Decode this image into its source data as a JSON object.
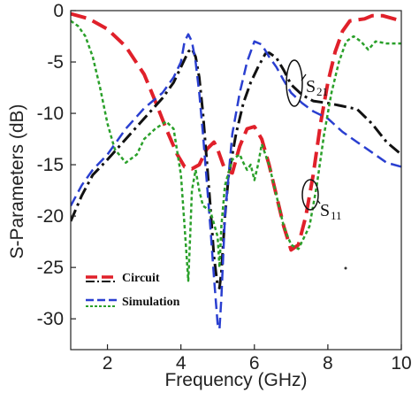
{
  "chart_data": {
    "type": "line",
    "title": "",
    "xlabel": "Frequency (GHz)",
    "ylabel": "S-Parameters (dB)",
    "xlim": [
      1,
      10
    ],
    "ylim": [
      -33,
      0
    ],
    "xticks": [
      2,
      4,
      6,
      8,
      10
    ],
    "yticks": [
      0,
      -5,
      -10,
      -15,
      -20,
      -25,
      -30
    ],
    "grid": false,
    "legend": {
      "placement": "bottom-left",
      "entries": [
        {
          "label": "Circuit",
          "color": "#e0202a"
        },
        {
          "label": "Simulation",
          "color": "#2a3fd0"
        }
      ]
    },
    "annotations": [
      {
        "main": "S",
        "sub": "21"
      },
      {
        "main": "S",
        "sub": "11"
      }
    ],
    "series": [
      {
        "role": "circuit-S11",
        "color": "#e0202a",
        "dash": "18,8",
        "width": 4,
        "x": [
          1.0,
          1.5,
          2.0,
          2.5,
          3.0,
          3.3,
          3.6,
          3.9,
          4.1,
          4.3,
          4.5,
          4.7,
          4.9,
          5.0,
          5.2,
          5.4,
          5.6,
          5.8,
          6.0,
          6.2,
          6.4,
          6.6,
          6.8,
          7.0,
          7.2,
          7.4,
          7.6,
          7.8,
          8.0,
          8.2,
          8.4,
          8.6,
          8.8,
          9.0,
          9.2,
          9.5,
          9.8,
          10.0
        ],
        "y": [
          -0.3,
          -0.8,
          -1.8,
          -3.5,
          -6.2,
          -8.8,
          -11.5,
          -14.0,
          -15.2,
          -15.4,
          -15.0,
          -13.5,
          -12.8,
          -13.5,
          -15.5,
          -15.8,
          -13.2,
          -11.5,
          -11.3,
          -12.5,
          -15.0,
          -18.0,
          -21.0,
          -23.3,
          -22.8,
          -20.0,
          -16.0,
          -11.0,
          -7.0,
          -4.0,
          -2.0,
          -1.0,
          -0.9,
          -0.8,
          -0.5,
          -0.5,
          -0.8,
          -1.0
        ]
      },
      {
        "role": "circuit-S21",
        "color": "#111111",
        "dash": "14,5,3,5",
        "width": 3,
        "x": [
          1.0,
          1.3,
          1.6,
          2.0,
          2.5,
          3.0,
          3.5,
          3.8,
          4.0,
          4.2,
          4.3,
          4.4,
          4.5,
          4.6,
          4.7,
          4.8,
          4.9,
          5.0,
          5.05,
          5.1,
          5.2,
          5.3,
          5.5,
          5.7,
          5.9,
          6.1,
          6.3,
          6.4,
          6.6,
          6.8,
          7.0,
          7.3,
          7.6,
          8.0,
          8.4,
          8.8,
          9.2,
          9.6,
          10.0
        ],
        "y": [
          -20.5,
          -18.0,
          -16.0,
          -14.5,
          -12.5,
          -10.5,
          -8.5,
          -7.0,
          -5.5,
          -4.0,
          -3.7,
          -4.5,
          -6.5,
          -10.0,
          -14.5,
          -19.0,
          -24.0,
          -26.8,
          -27.0,
          -25.5,
          -20.0,
          -16.0,
          -12.0,
          -9.0,
          -7.0,
          -5.5,
          -4.2,
          -4.1,
          -4.6,
          -5.8,
          -7.2,
          -8.2,
          -8.8,
          -9.0,
          -9.3,
          -9.6,
          -11.0,
          -12.8,
          -14.0
        ]
      },
      {
        "role": "simulation-S21",
        "color": "#2a3fd0",
        "dash": "12,6",
        "width": 2.5,
        "x": [
          1.0,
          1.3,
          1.6,
          2.0,
          2.5,
          3.0,
          3.5,
          3.8,
          4.0,
          4.1,
          4.2,
          4.3,
          4.4,
          4.5,
          4.6,
          4.7,
          4.8,
          4.9,
          5.0,
          5.05,
          5.1,
          5.2,
          5.4,
          5.6,
          5.8,
          6.0,
          6.2,
          6.4,
          6.6,
          6.8,
          7.0,
          7.3,
          7.6,
          8.0,
          8.4,
          8.8,
          9.2,
          9.6,
          10.0
        ],
        "y": [
          -19.0,
          -17.0,
          -15.5,
          -14.0,
          -11.5,
          -9.5,
          -8.0,
          -6.5,
          -5.0,
          -3.0,
          -2.3,
          -3.0,
          -5.0,
          -8.0,
          -12.0,
          -16.5,
          -21.0,
          -26.0,
          -30.5,
          -31.0,
          -28.0,
          -20.0,
          -12.0,
          -8.0,
          -5.0,
          -3.0,
          -3.3,
          -4.5,
          -5.5,
          -6.8,
          -8.0,
          -9.0,
          -9.8,
          -10.5,
          -11.8,
          -12.8,
          -13.8,
          -14.8,
          -15.2
        ]
      },
      {
        "role": "simulation-S11",
        "color": "#2aa02a",
        "dash": "4,3",
        "width": 2.5,
        "x": [
          1.0,
          1.2,
          1.4,
          1.6,
          1.8,
          2.0,
          2.2,
          2.5,
          2.8,
          3.0,
          3.3,
          3.6,
          3.8,
          4.0,
          4.1,
          4.2,
          4.25,
          4.3,
          4.4,
          4.5,
          4.6,
          4.8,
          5.0,
          5.05,
          5.1,
          5.2,
          5.4,
          5.6,
          5.7,
          5.8,
          5.9,
          6.0,
          6.1,
          6.2,
          6.4,
          6.6,
          6.8,
          7.0,
          7.2,
          7.5,
          7.7,
          7.9,
          8.1,
          8.3,
          8.5,
          8.7,
          8.9,
          9.1,
          9.3,
          9.6,
          10.0
        ],
        "y": [
          -1.0,
          -1.5,
          -2.5,
          -4.5,
          -7.5,
          -11.0,
          -13.5,
          -14.8,
          -14.0,
          -12.5,
          -11.5,
          -10.8,
          -11.5,
          -16.0,
          -21.0,
          -26.3,
          -22.0,
          -17.5,
          -15.5,
          -17.5,
          -19.0,
          -19.5,
          -22.0,
          -25.0,
          -21.0,
          -17.0,
          -14.5,
          -14.0,
          -14.8,
          -15.5,
          -15.0,
          -16.5,
          -15.0,
          -13.0,
          -15.0,
          -18.0,
          -21.0,
          -22.8,
          -23.2,
          -21.0,
          -17.0,
          -12.0,
          -8.0,
          -5.0,
          -3.0,
          -2.5,
          -3.0,
          -3.8,
          -3.0,
          -3.2,
          -3.2
        ]
      }
    ]
  }
}
